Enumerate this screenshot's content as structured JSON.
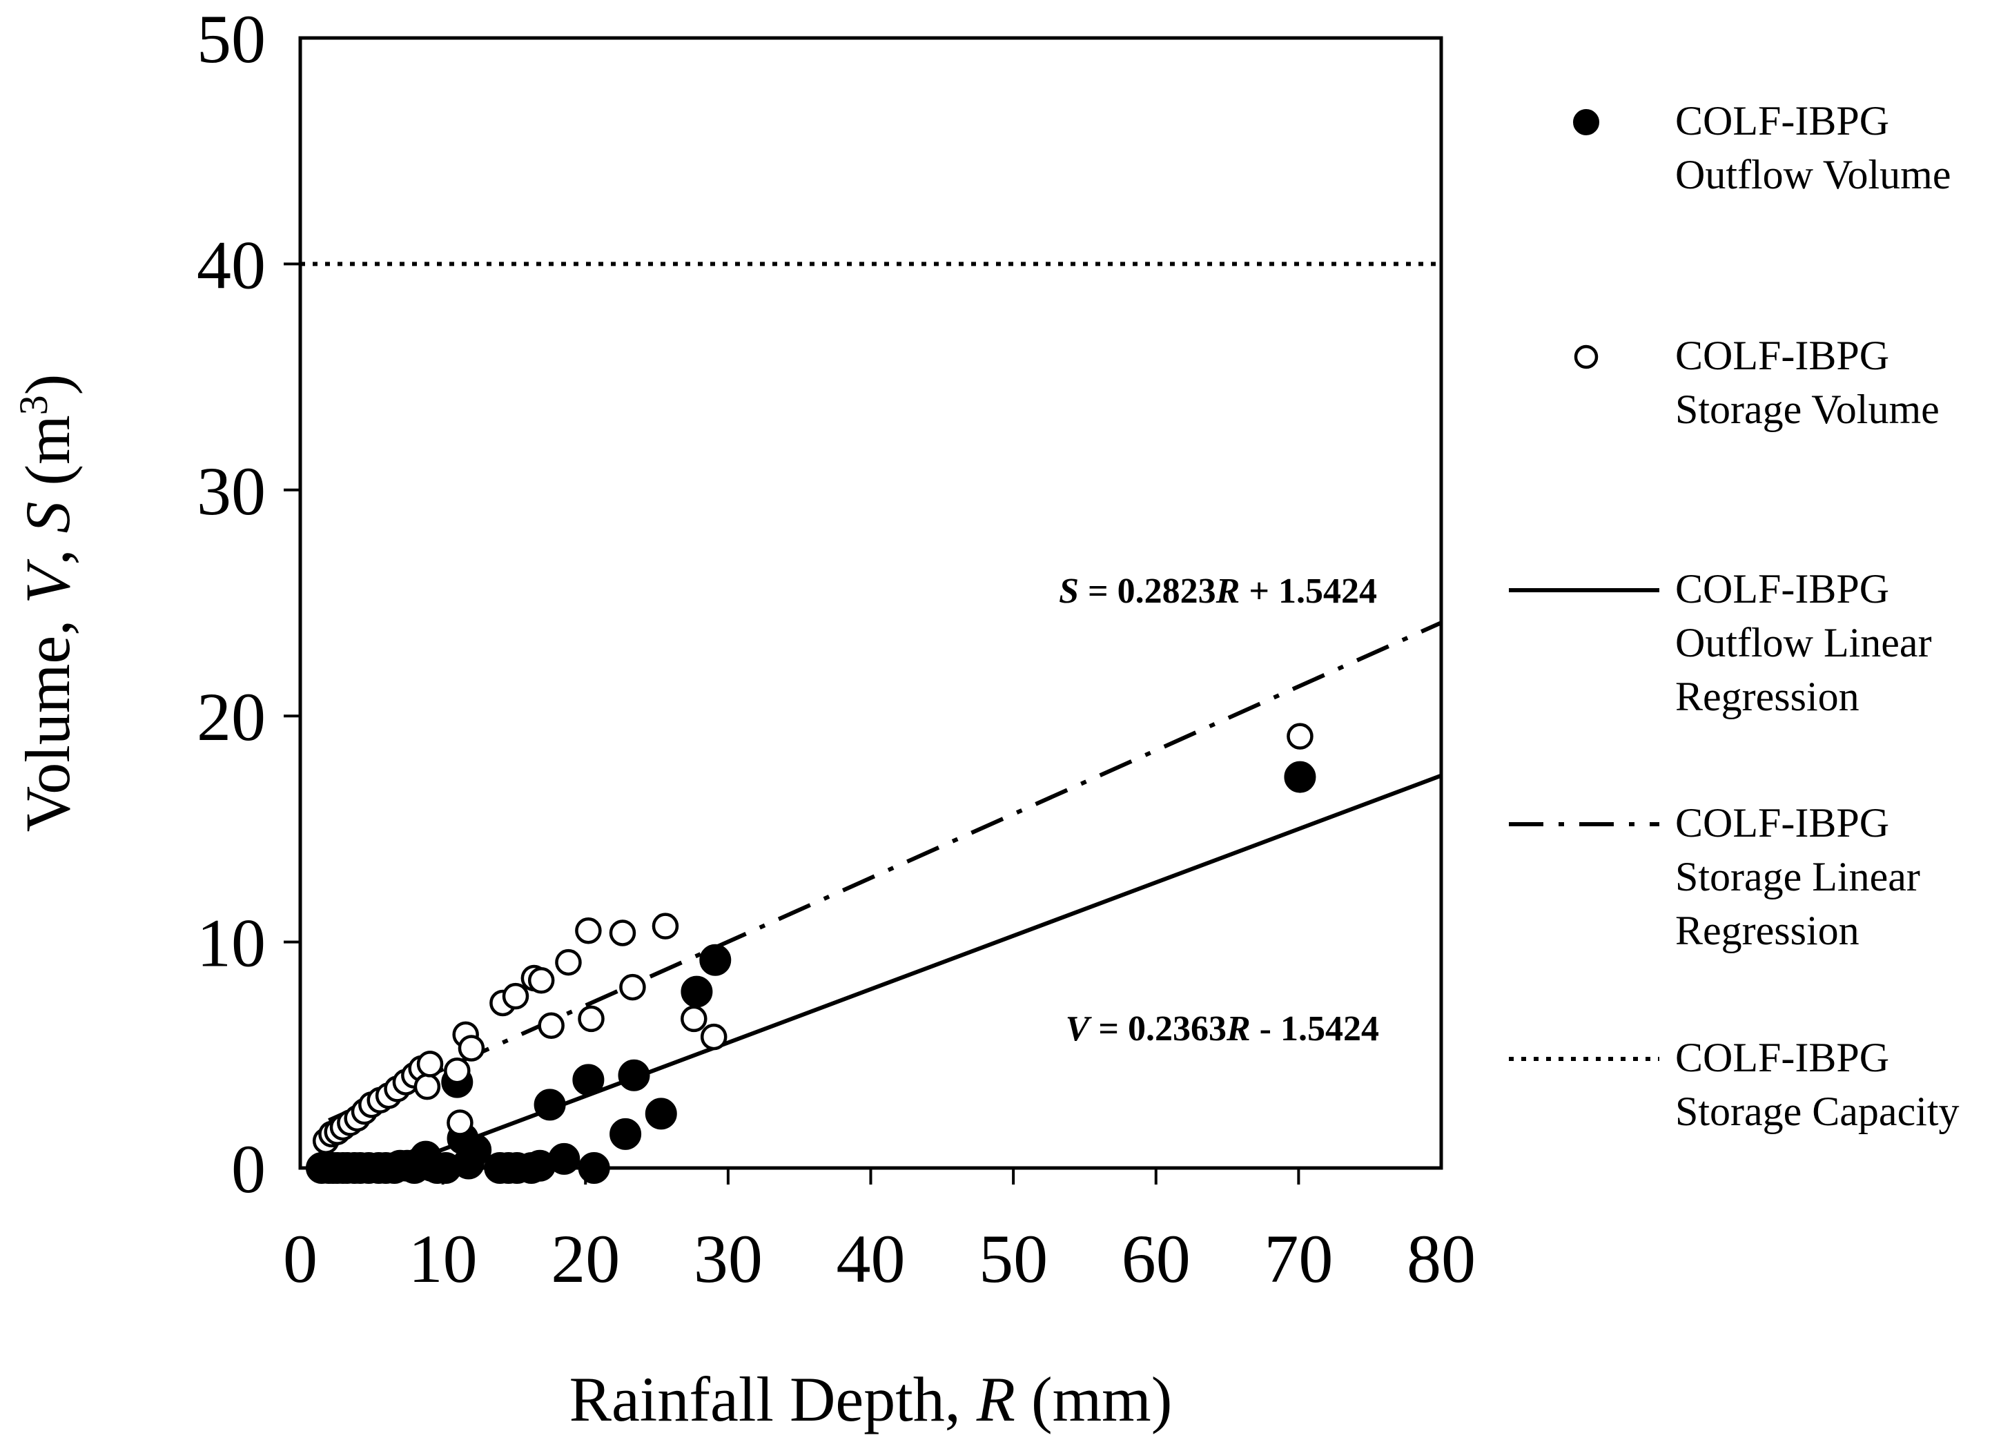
{
  "chart_data": {
    "type": "scatter",
    "title": "",
    "xlabel": {
      "prefix": "Rainfall Depth, ",
      "var": "R",
      "suffix": " (mm)"
    },
    "ylabel": {
      "prefix": "Volume, ",
      "var1": "V",
      "sep": ", ",
      "var2": "S",
      "suffix_pre": " (m",
      "sup": "3",
      "suffix_post": ")"
    },
    "xlim": [
      0,
      80
    ],
    "ylim": [
      0,
      50
    ],
    "xticks": [
      "0",
      "10",
      "20",
      "30",
      "40",
      "50",
      "60",
      "70",
      "80"
    ],
    "yticks": [
      "0",
      "10",
      "20",
      "30",
      "40",
      "50"
    ],
    "grid": false,
    "legend_position": "right",
    "series": [
      {
        "name": "COLF-IBPG Outflow Volume",
        "legend_lines": [
          "COLF-IBPG",
          "Outflow Volume"
        ],
        "kind": "scatter",
        "marker": "filled-circle",
        "points": [
          [
            1.5,
            0
          ],
          [
            2,
            0
          ],
          [
            2.3,
            0
          ],
          [
            2.6,
            0
          ],
          [
            3,
            0
          ],
          [
            3.3,
            0
          ],
          [
            3.8,
            0
          ],
          [
            4.2,
            0
          ],
          [
            4.8,
            0
          ],
          [
            5.5,
            0
          ],
          [
            6,
            0
          ],
          [
            6.6,
            0
          ],
          [
            7,
            0.1
          ],
          [
            7.5,
            0.1
          ],
          [
            8,
            0
          ],
          [
            8.3,
            0.2
          ],
          [
            8.8,
            0.5
          ],
          [
            9.2,
            0.1
          ],
          [
            9.6,
            0
          ],
          [
            10.2,
            0
          ],
          [
            11,
            3.8
          ],
          [
            11.4,
            1.3
          ],
          [
            11.8,
            0.2
          ],
          [
            12.3,
            0.8
          ],
          [
            14,
            0
          ],
          [
            14.6,
            0
          ],
          [
            15.2,
            0
          ],
          [
            16.2,
            0
          ],
          [
            16.8,
            0.1
          ],
          [
            17.5,
            2.8
          ],
          [
            18.5,
            0.4
          ],
          [
            20.2,
            3.9
          ],
          [
            20.6,
            0
          ],
          [
            22.8,
            1.5
          ],
          [
            23.4,
            4.1
          ],
          [
            25.3,
            2.4
          ],
          [
            27.8,
            7.8
          ],
          [
            29.1,
            9.2
          ],
          [
            70.1,
            17.3
          ]
        ]
      },
      {
        "name": "COLF-IBPG Storage Volume",
        "legend_lines": [
          "COLF-IBPG",
          "Storage Volume"
        ],
        "kind": "scatter",
        "marker": "open-circle",
        "points": [
          [
            1.8,
            1.2
          ],
          [
            2.2,
            1.5
          ],
          [
            2.6,
            1.6
          ],
          [
            3,
            1.8
          ],
          [
            3.5,
            2
          ],
          [
            4,
            2.2
          ],
          [
            4.5,
            2.5
          ],
          [
            5,
            2.8
          ],
          [
            5.6,
            3
          ],
          [
            6.2,
            3.2
          ],
          [
            6.8,
            3.5
          ],
          [
            7.4,
            3.8
          ],
          [
            8,
            4.1
          ],
          [
            8.5,
            4.4
          ],
          [
            8.9,
            3.6
          ],
          [
            9.1,
            4.6
          ],
          [
            11,
            4.3
          ],
          [
            11.2,
            2
          ],
          [
            11.6,
            5.9
          ],
          [
            12,
            5.3
          ],
          [
            14.2,
            7.3
          ],
          [
            15.1,
            7.6
          ],
          [
            16.4,
            8.4
          ],
          [
            16.9,
            8.3
          ],
          [
            17.6,
            6.3
          ],
          [
            18.8,
            9.1
          ],
          [
            20.2,
            10.5
          ],
          [
            20.4,
            6.6
          ],
          [
            22.6,
            10.4
          ],
          [
            23.3,
            8
          ],
          [
            25.6,
            10.7
          ],
          [
            27.6,
            6.6
          ],
          [
            29,
            5.8
          ],
          [
            70.1,
            19.1
          ]
        ]
      },
      {
        "name": "COLF-IBPG Outflow Linear Regression",
        "legend_lines": [
          "COLF-IBPG",
          "Outflow Linear",
          "Regression"
        ],
        "kind": "line",
        "style": "solid",
        "slope": 0.2363,
        "intercept": -1.5424,
        "x_range": [
          6.53,
          80
        ]
      },
      {
        "name": "COLF-IBPG Storage Linear Regression",
        "legend_lines": [
          "COLF-IBPG",
          "Storage Linear",
          "Regression"
        ],
        "kind": "line",
        "style": "dash-dot",
        "slope": 0.2823,
        "intercept": 1.5424,
        "x_range": [
          2,
          80
        ]
      },
      {
        "name": "COLF-IBPG Storage Capacity",
        "legend_lines": [
          "COLF-IBPG",
          "Storage Capacity"
        ],
        "kind": "hline",
        "style": "dotted",
        "y": 40
      }
    ],
    "annotations": [
      {
        "id": "storage-eq",
        "parts": [
          [
            "S",
            "it"
          ],
          [
            " = 0.2823",
            "b"
          ],
          [
            "R",
            "it"
          ],
          [
            " + 1.5424",
            "b"
          ]
        ]
      },
      {
        "id": "outflow-eq",
        "parts": [
          [
            "V",
            "it"
          ],
          [
            " = 0.2363",
            "b"
          ],
          [
            "R",
            "it"
          ],
          [
            " - 1.5424",
            "b"
          ]
        ]
      }
    ]
  }
}
